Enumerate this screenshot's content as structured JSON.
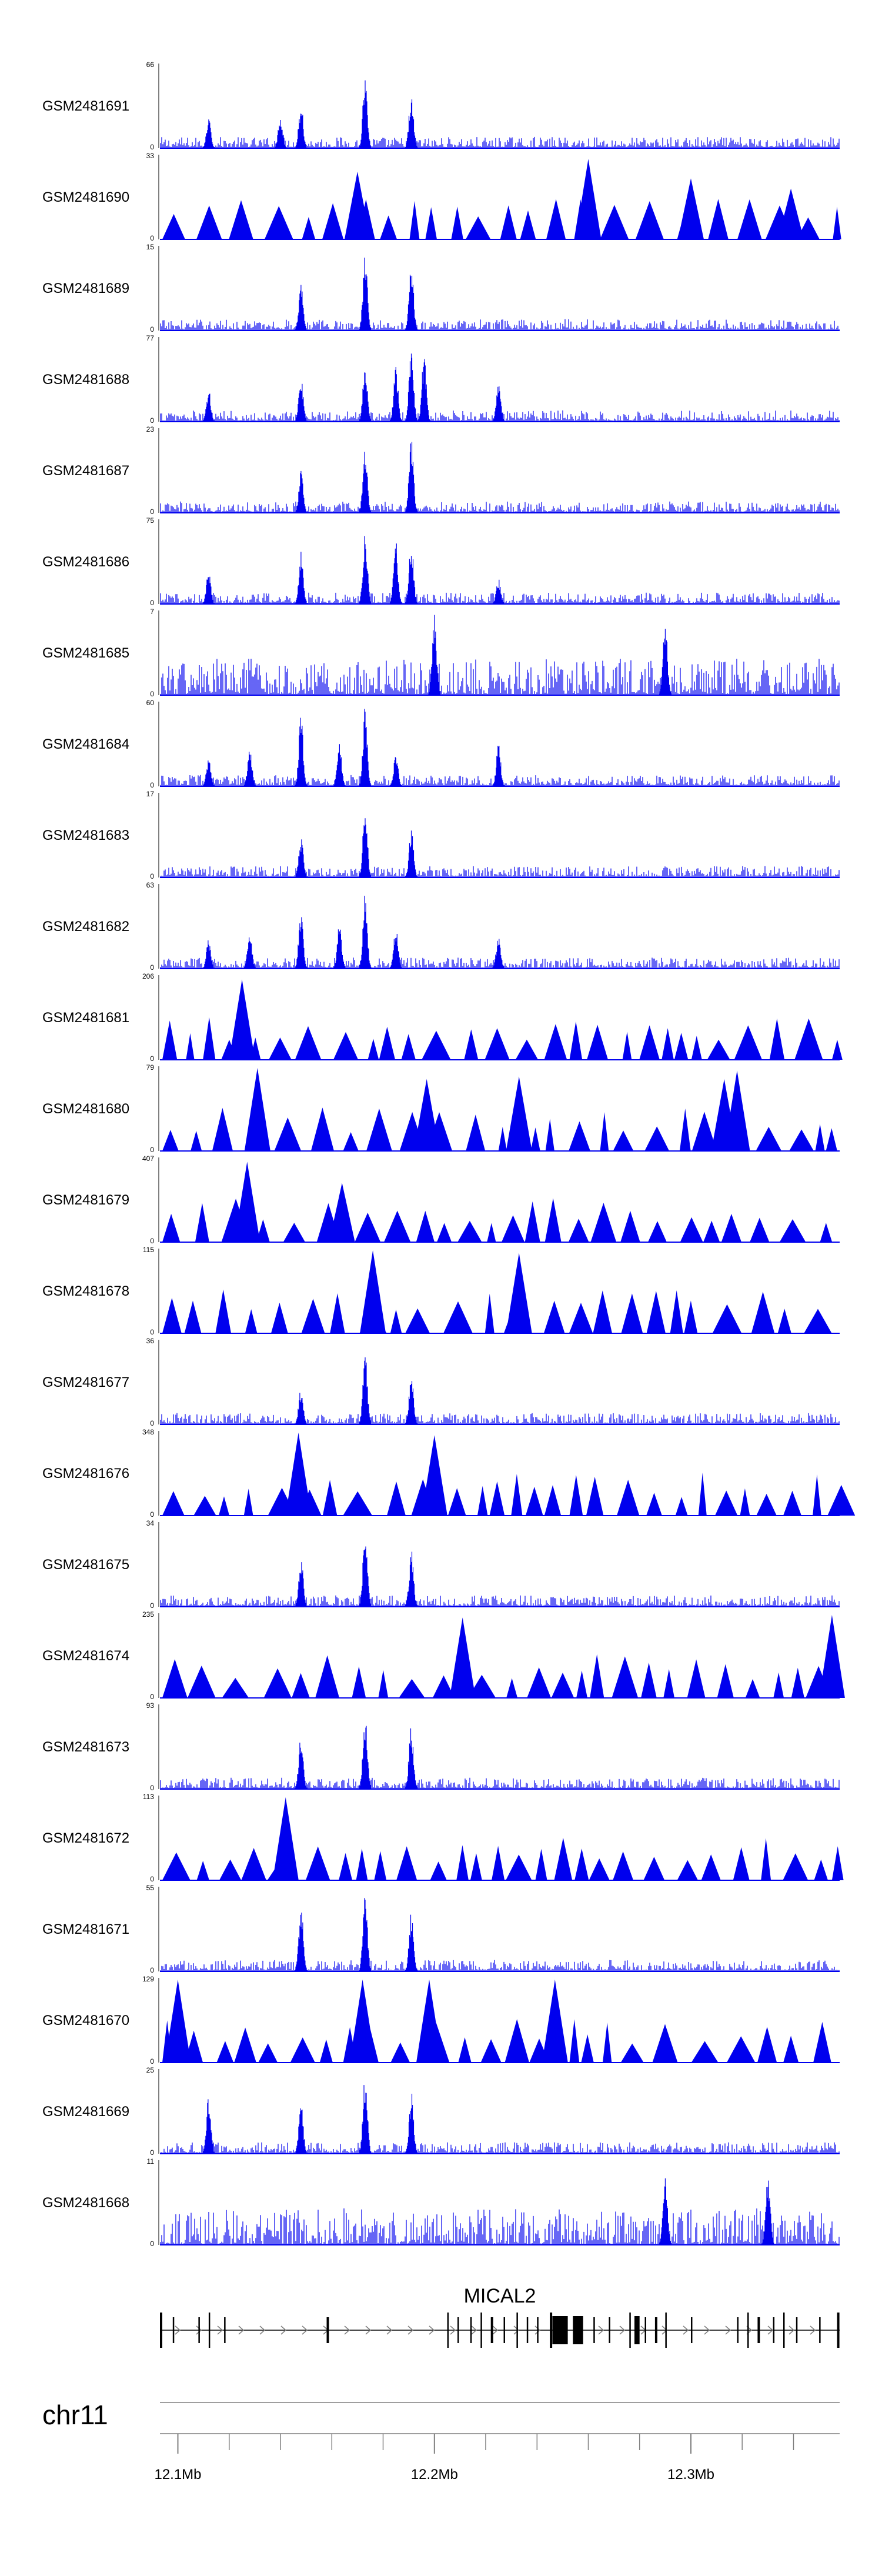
{
  "chart_data": {
    "type": "area",
    "title": "",
    "xlabel": "",
    "ylabel": "",
    "colors": {
      "signal": "#0000ee",
      "gene": "#000000",
      "axis": "#7f7f7f"
    },
    "x_range_mb": [
      12.093,
      12.358
    ],
    "tracks": [
      {
        "name": "GSM2481691",
        "ymax": "66",
        "ymin": "0",
        "style": "signal",
        "peaks": [
          [
            12.112,
            0.35
          ],
          [
            12.14,
            0.4
          ],
          [
            12.148,
            0.55
          ],
          [
            12.173,
            0.9
          ],
          [
            12.191,
            0.7
          ]
        ]
      },
      {
        "name": "GSM2481690",
        "ymax": "33",
        "ymin": "0",
        "style": "triangles",
        "peaks": [
          [
            12.17,
            0.8
          ],
          [
            12.26,
            0.95
          ],
          [
            12.3,
            0.72
          ],
          [
            12.339,
            0.6
          ]
        ]
      },
      {
        "name": "GSM2481689",
        "ymax": "15",
        "ymin": "0",
        "style": "signal",
        "peaks": [
          [
            12.148,
            0.55
          ],
          [
            12.173,
            0.92
          ],
          [
            12.191,
            0.8
          ]
        ]
      },
      {
        "name": "GSM2481688",
        "ymax": "77",
        "ymin": "0",
        "style": "signal",
        "peaks": [
          [
            12.112,
            0.4
          ],
          [
            12.148,
            0.55
          ],
          [
            12.173,
            0.7
          ],
          [
            12.185,
            0.65
          ],
          [
            12.191,
            0.9
          ],
          [
            12.196,
            0.85
          ],
          [
            12.225,
            0.45
          ]
        ]
      },
      {
        "name": "GSM2481687",
        "ymax": "23",
        "ymin": "0",
        "style": "signal",
        "peaks": [
          [
            12.148,
            0.5
          ],
          [
            12.173,
            0.85
          ],
          [
            12.191,
            0.95
          ]
        ]
      },
      {
        "name": "GSM2481686",
        "ymax": "75",
        "ymin": "0",
        "style": "signal",
        "peaks": [
          [
            12.112,
            0.4
          ],
          [
            12.148,
            0.65
          ],
          [
            12.173,
            0.9
          ],
          [
            12.185,
            0.75
          ],
          [
            12.191,
            0.8
          ],
          [
            12.225,
            0.3
          ]
        ]
      },
      {
        "name": "GSM2481685",
        "ymax": "7",
        "ymin": "0",
        "style": "noise",
        "peaks": [
          [
            12.2,
            0.95
          ],
          [
            12.29,
            0.88
          ]
        ]
      },
      {
        "name": "GSM2481684",
        "ymax": "60",
        "ymin": "0",
        "style": "signal",
        "peaks": [
          [
            12.112,
            0.35
          ],
          [
            12.128,
            0.45
          ],
          [
            12.148,
            0.85
          ],
          [
            12.163,
            0.5
          ],
          [
            12.173,
            0.95
          ],
          [
            12.185,
            0.4
          ],
          [
            12.225,
            0.5
          ]
        ]
      },
      {
        "name": "GSM2481683",
        "ymax": "17",
        "ymin": "0",
        "style": "signal",
        "peaks": [
          [
            12.148,
            0.5
          ],
          [
            12.173,
            0.9
          ],
          [
            12.191,
            0.6
          ]
        ]
      },
      {
        "name": "GSM2481682",
        "ymax": "63",
        "ymin": "0",
        "style": "signal",
        "peaks": [
          [
            12.112,
            0.35
          ],
          [
            12.128,
            0.45
          ],
          [
            12.148,
            0.7
          ],
          [
            12.163,
            0.55
          ],
          [
            12.173,
            0.9
          ],
          [
            12.185,
            0.5
          ],
          [
            12.225,
            0.45
          ]
        ]
      },
      {
        "name": "GSM2481681",
        "ymax": "206",
        "ymin": "0",
        "style": "triangles",
        "peaks": [
          [
            12.125,
            0.95
          ]
        ]
      },
      {
        "name": "GSM2481680",
        "ymax": "79",
        "ymin": "0",
        "style": "triangles",
        "peaks": [
          [
            12.131,
            0.98
          ],
          [
            12.197,
            0.85
          ],
          [
            12.233,
            0.88
          ],
          [
            12.313,
            0.85
          ],
          [
            12.318,
            0.95
          ]
        ]
      },
      {
        "name": "GSM2481679",
        "ymax": "407",
        "ymin": "0",
        "style": "triangles",
        "peaks": [
          [
            12.127,
            0.95
          ],
          [
            12.164,
            0.7
          ]
        ]
      },
      {
        "name": "GSM2481678",
        "ymax": "115",
        "ymin": "0",
        "style": "triangles",
        "peaks": [
          [
            12.176,
            0.98
          ],
          [
            12.233,
            0.95
          ]
        ]
      },
      {
        "name": "GSM2481677",
        "ymax": "36",
        "ymin": "0",
        "style": "signal",
        "peaks": [
          [
            12.148,
            0.45
          ],
          [
            12.173,
            0.95
          ],
          [
            12.191,
            0.6
          ]
        ]
      },
      {
        "name": "GSM2481676",
        "ymax": "348",
        "ymin": "0",
        "style": "triangles",
        "peaks": [
          [
            12.147,
            0.98
          ],
          [
            12.2,
            0.95
          ]
        ]
      },
      {
        "name": "GSM2481675",
        "ymax": "34",
        "ymin": "0",
        "style": "signal",
        "peaks": [
          [
            12.148,
            0.6
          ],
          [
            12.173,
            0.95
          ],
          [
            12.191,
            0.7
          ]
        ]
      },
      {
        "name": "GSM2481674",
        "ymax": "235",
        "ymin": "0",
        "style": "triangles",
        "peaks": [
          [
            12.211,
            0.95
          ],
          [
            12.355,
            0.98
          ]
        ]
      },
      {
        "name": "GSM2481673",
        "ymax": "93",
        "ymin": "0",
        "style": "signal",
        "peaks": [
          [
            12.148,
            0.65
          ],
          [
            12.173,
            0.95
          ],
          [
            12.191,
            0.8
          ]
        ]
      },
      {
        "name": "GSM2481672",
        "ymax": "113",
        "ymin": "0",
        "style": "triangles",
        "peaks": [
          [
            12.142,
            0.98
          ]
        ]
      },
      {
        "name": "GSM2481671",
        "ymax": "55",
        "ymin": "0",
        "style": "signal",
        "peaks": [
          [
            12.148,
            0.8
          ],
          [
            12.173,
            0.95
          ],
          [
            12.191,
            0.7
          ]
        ]
      },
      {
        "name": "GSM2481670",
        "ymax": "129",
        "ymin": "0",
        "style": "triangles",
        "peaks": [
          [
            12.1,
            0.98
          ],
          [
            12.172,
            0.98
          ],
          [
            12.198,
            0.98
          ],
          [
            12.247,
            0.98
          ]
        ]
      },
      {
        "name": "GSM2481669",
        "ymax": "25",
        "ymin": "0",
        "style": "signal",
        "peaks": [
          [
            12.112,
            0.7
          ],
          [
            12.148,
            0.65
          ],
          [
            12.173,
            0.95
          ],
          [
            12.191,
            0.75
          ]
        ]
      },
      {
        "name": "GSM2481668",
        "ymax": "11",
        "ymin": "0",
        "style": "noise",
        "peaks": [
          [
            12.29,
            0.9
          ],
          [
            12.33,
            0.95
          ]
        ]
      }
    ],
    "gene": {
      "name": "MICAL2",
      "start_mb": 12.093,
      "end_mb": 12.358,
      "strand": "+"
    },
    "chromosome": "chr11",
    "x_ticks": [
      {
        "value": 12.1,
        "label": "12.1Mb"
      },
      {
        "value": 12.2,
        "label": "12.2Mb"
      },
      {
        "value": 12.3,
        "label": "12.3Mb"
      }
    ],
    "minor_tick_step_mb": 0.02
  }
}
